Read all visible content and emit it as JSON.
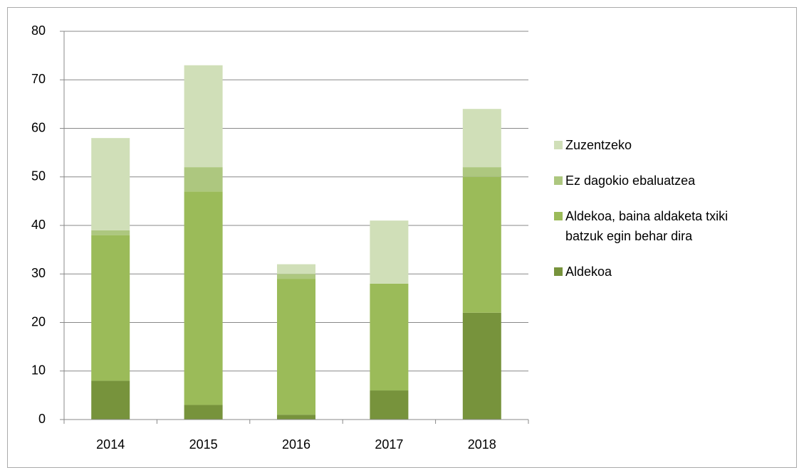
{
  "chart_data": {
    "type": "stacked_bar",
    "categories": [
      "2014",
      "2015",
      "2016",
      "2017",
      "2018"
    ],
    "series": [
      {
        "name": "Aldekoa",
        "color": "#77933c",
        "values": [
          8,
          3,
          1,
          6,
          22
        ]
      },
      {
        "name": "Aldekoa, baina aldaketa txiki batzuk egin behar dira",
        "color": "#9bbb59",
        "values": [
          30,
          44,
          28,
          22,
          28
        ]
      },
      {
        "name": "Ez dagokio ebaluatzea",
        "color": "#adc77f",
        "values": [
          1,
          5,
          1,
          0,
          2
        ]
      },
      {
        "name": "Zuzentzeko",
        "color": "#d0dfb8",
        "values": [
          19,
          21,
          2,
          13,
          12
        ]
      }
    ],
    "ylim": [
      0,
      80
    ],
    "yticks": [
      0,
      10,
      20,
      30,
      40,
      50,
      60,
      70,
      80
    ],
    "grid": true,
    "legend": "right"
  }
}
